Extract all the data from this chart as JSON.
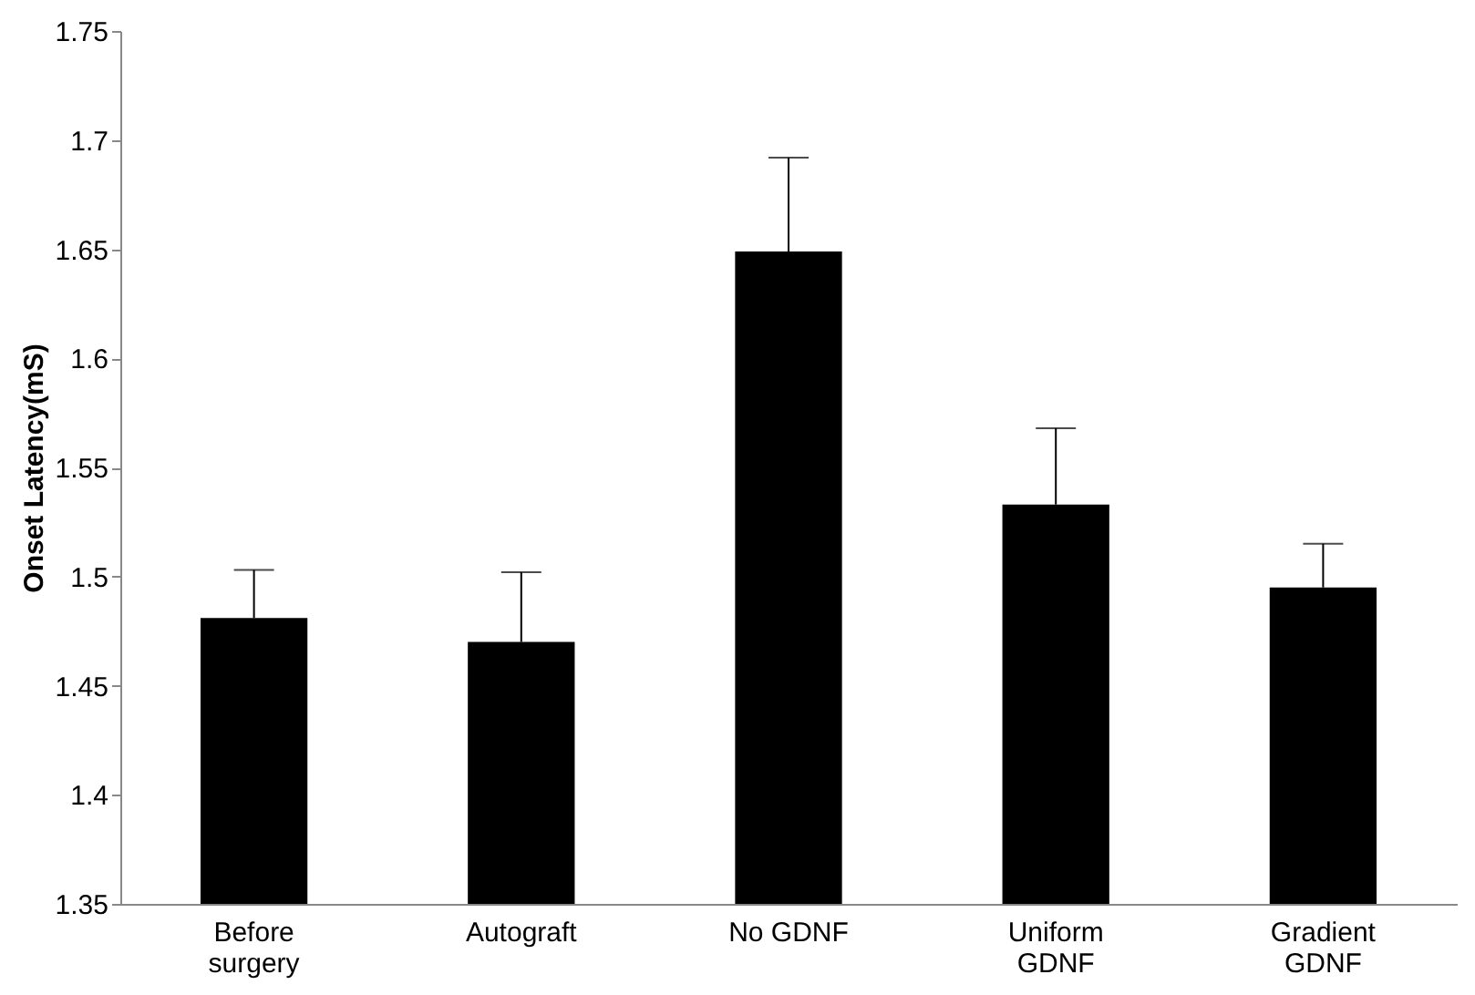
{
  "chart_data": {
    "type": "bar",
    "ylabel": "Onset Latency(mS)",
    "categories": [
      "Before\nsurgery",
      "Autograft",
      "No GDNF",
      "Uniform\nGDNF",
      "Gradient\nGDNF"
    ],
    "values": [
      1.481,
      1.47,
      1.649,
      1.533,
      1.495
    ],
    "errors": [
      [
        1.481,
        1.503
      ],
      [
        1.47,
        1.502
      ],
      [
        1.649,
        1.692
      ],
      [
        1.533,
        1.568
      ],
      [
        1.495,
        1.515
      ]
    ],
    "color": "#000000",
    "ylim": [
      1.35,
      1.75
    ],
    "yticks": [
      1.35,
      1.4,
      1.45,
      1.5,
      1.55,
      1.6,
      1.65,
      1.7,
      1.75
    ],
    "grid": false
  }
}
